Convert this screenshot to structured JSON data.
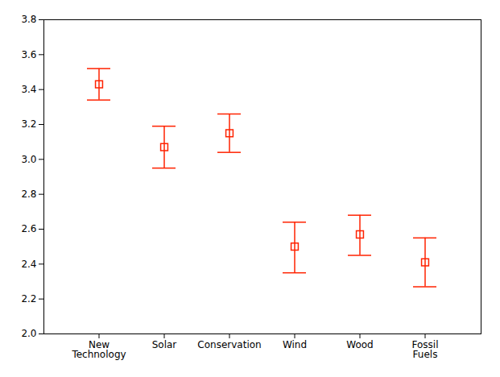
{
  "chart_data": {
    "type": "errorbar",
    "categories": [
      "New\nTechnology",
      "Solar",
      "Conservation",
      "Wind",
      "Wood",
      "Fossil\nFuels"
    ],
    "values": [
      3.43,
      3.07,
      3.15,
      2.5,
      2.57,
      2.41
    ],
    "ci_low": [
      3.34,
      2.95,
      3.04,
      2.35,
      2.45,
      2.27
    ],
    "ci_high": [
      3.52,
      3.19,
      3.26,
      2.64,
      2.68,
      2.55
    ],
    "color": "#FF2200",
    "marker": "square",
    "ylim": [
      2.0,
      3.8
    ],
    "yticks": [
      {
        "value": 2.0,
        "label": "2.0"
      },
      2.2,
      2.4,
      2.6,
      2.8,
      {
        "value": 3.0,
        "label": "3.0"
      },
      3.2,
      3.4,
      3.6,
      3.8
    ],
    "grid": false
  }
}
